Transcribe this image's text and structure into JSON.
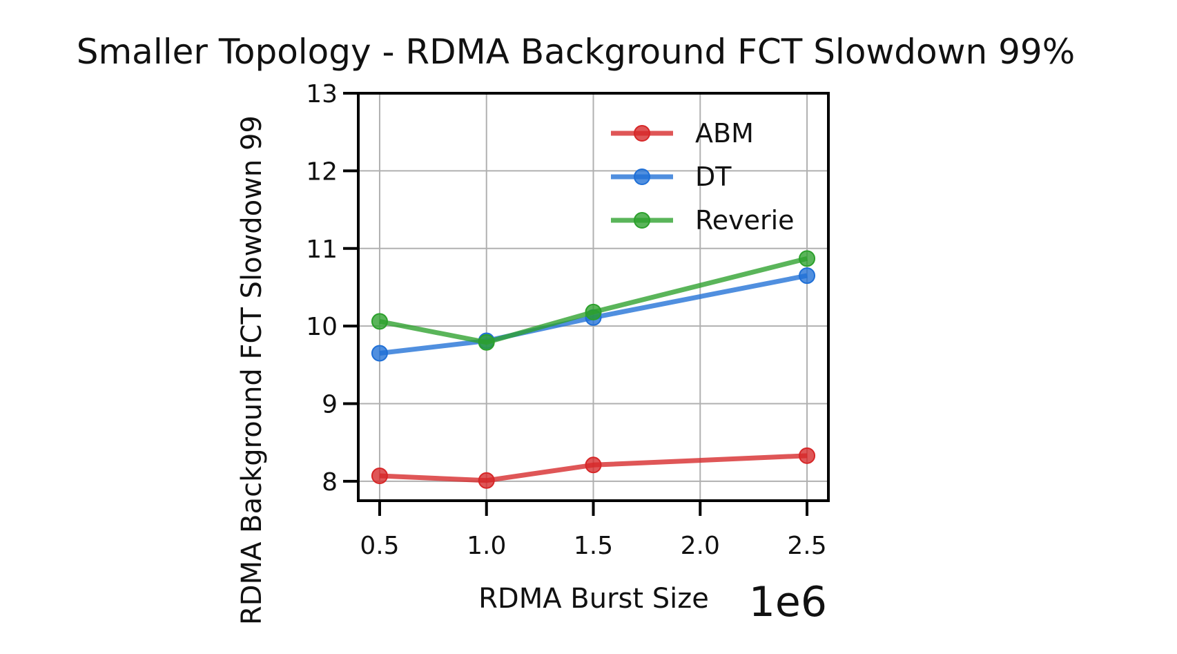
{
  "chart_data": {
    "type": "line",
    "title": "Smaller Topology - RDMA Background FCT Slowdown 99%",
    "xlabel": "RDMA Burst Size",
    "ylabel": "RDMA Background FCT Slowdown 99",
    "x_offset_label": "1e6",
    "x": [
      0.5,
      1.0,
      1.5,
      2.5
    ],
    "xlim": [
      0.4,
      2.6
    ],
    "ylim": [
      7.75,
      13.0
    ],
    "xticks": [
      0.5,
      1.0,
      1.5,
      2.0,
      2.5
    ],
    "xtick_labels": [
      "0.5",
      "1.0",
      "1.5",
      "2.0",
      "2.5"
    ],
    "yticks": [
      8,
      9,
      10,
      11,
      12,
      13
    ],
    "ytick_labels": [
      "8",
      "9",
      "10",
      "11",
      "12",
      "13"
    ],
    "grid": true,
    "legend_position": "top-right",
    "series": [
      {
        "name": "ABM",
        "color": "#d62728",
        "values": [
          8.07,
          8.01,
          8.21,
          8.33
        ]
      },
      {
        "name": "DT",
        "color": "#1f6fd6",
        "values": [
          9.65,
          9.81,
          10.11,
          10.65
        ]
      },
      {
        "name": "Reverie",
        "color": "#2ca02c",
        "values": [
          10.06,
          9.79,
          10.18,
          10.87
        ]
      }
    ]
  }
}
